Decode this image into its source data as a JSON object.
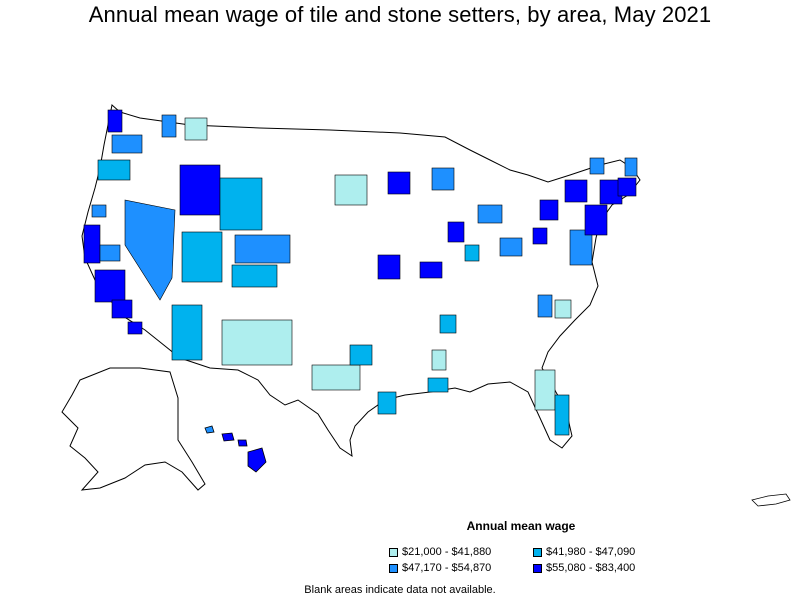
{
  "title": "Annual mean wage of tile and stone setters, by area, May 2021",
  "legend": {
    "title": "Annual mean wage",
    "items": [
      {
        "label": "$21,000 - $41,880",
        "color": "#aeeeee"
      },
      {
        "label": "$41,980 - $47,090",
        "color": "#00b2ee"
      },
      {
        "label": "$47,170 - $54,870",
        "color": "#1e90ff"
      },
      {
        "label": "$55,080 - $83,400",
        "color": "#0000ff"
      }
    ]
  },
  "footnote": "Blank areas indicate data not available."
}
